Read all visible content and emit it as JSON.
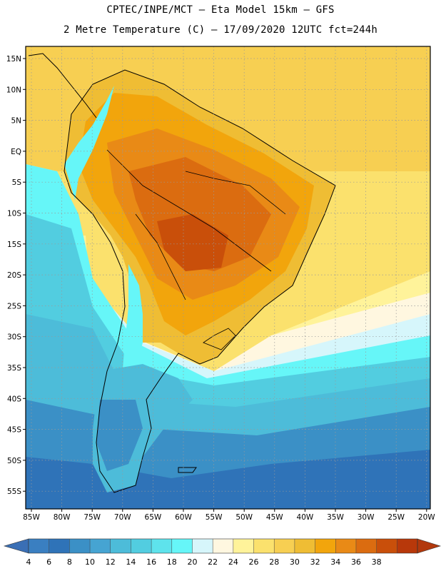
{
  "header": {
    "line1": "CPTEC/INPE/MCT –  Eta Model 15km – GFS",
    "line2": "2 Metre Temperature (C) – 17/09/2020 12UTC fct=244h"
  },
  "map": {
    "lat_labels": [
      "15N",
      "10N",
      "5N",
      "EQ",
      "5S",
      "10S",
      "15S",
      "20S",
      "25S",
      "30S",
      "35S",
      "40S",
      "45S",
      "50S",
      "55S"
    ],
    "lon_labels": [
      "85W",
      "80W",
      "75W",
      "70W",
      "65W",
      "60W",
      "55W",
      "50W",
      "45W",
      "40W",
      "35W",
      "30W",
      "25W",
      "20W"
    ]
  },
  "colorbar": {
    "labels": [
      "4",
      "6",
      "8",
      "10",
      "12",
      "14",
      "16",
      "18",
      "20",
      "22",
      "24",
      "26",
      "28",
      "30",
      "32",
      "34",
      "36",
      "38"
    ],
    "colors": [
      "#3a7fc1",
      "#2f73b8",
      "#3b90c6",
      "#46a4d2",
      "#4dbcd9",
      "#52cde0",
      "#5ee3ec",
      "#66f6f8",
      "#d6f6fb",
      "#fff7e0",
      "#fff39a",
      "#fbe16d",
      "#f7cf52",
      "#efbd34",
      "#f2a50c",
      "#e98a16",
      "#db6c10",
      "#c94f0a",
      "#b8380a"
    ],
    "end_left": "#3a6fb5",
    "end_right": "#b2380c"
  }
}
